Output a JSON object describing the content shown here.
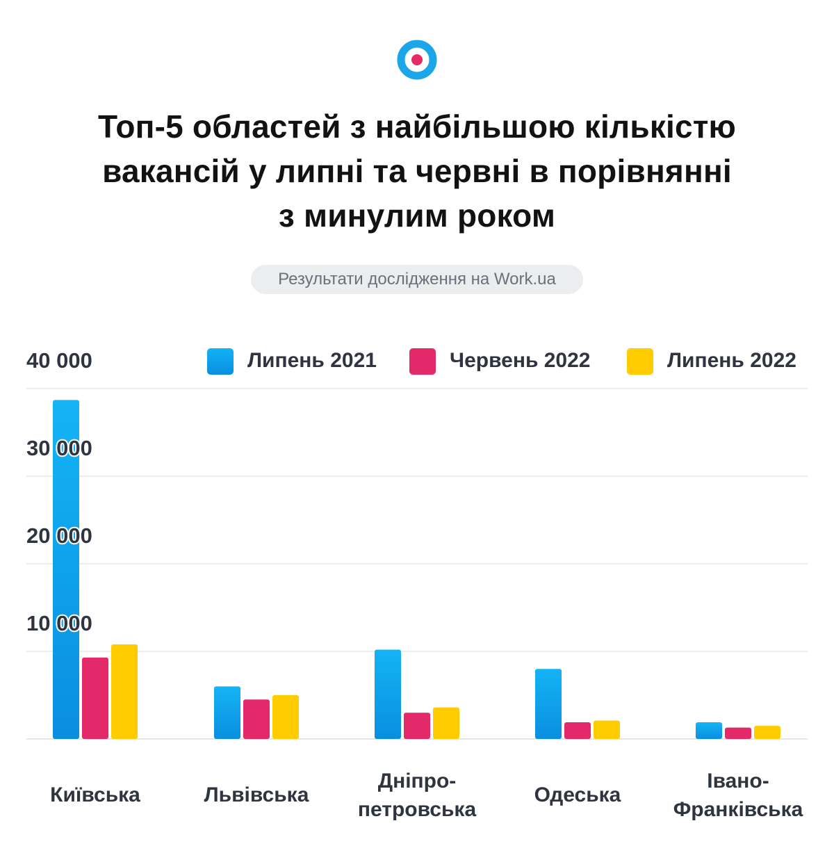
{
  "title_lines": [
    "Топ-5 областей з найбільшою кількістю",
    "вакансій у липні та червні в порівнянні",
    "з минулим роком"
  ],
  "subtitle": "Результати дослідження на Work.ua",
  "colors": {
    "july_2021": "#0aa3e8",
    "june_2022": "#e4296b",
    "july_2022": "#ffcc00",
    "logo_blue": "#1aa6e8",
    "logo_pink": "#e52b64"
  },
  "chart_data": {
    "type": "bar",
    "title": "Топ-5 областей з найбільшою кількістю вакансій у липні та червні в порівнянні з минулим роком",
    "categories": [
      [
        "Київська"
      ],
      [
        "Львівська"
      ],
      [
        "Дніпро-",
        "петровська"
      ],
      [
        "Одеська"
      ],
      [
        "Івано-",
        "Франківська"
      ]
    ],
    "series": [
      {
        "name": "Липень 2021",
        "values": [
          38700,
          6000,
          10200,
          8000,
          1900
        ]
      },
      {
        "name": "Червень 2022",
        "values": [
          9300,
          4500,
          3000,
          1900,
          1300
        ]
      },
      {
        "name": "Липень 2022",
        "values": [
          10800,
          5000,
          3600,
          2100,
          1500
        ]
      }
    ],
    "yticks": [
      "10 000",
      "20 000",
      "30 000",
      "40 000"
    ],
    "ytick_values": [
      10000,
      20000,
      30000,
      40000
    ],
    "ylim": [
      0,
      40000
    ],
    "grid": true,
    "legend_position": "top-right"
  }
}
